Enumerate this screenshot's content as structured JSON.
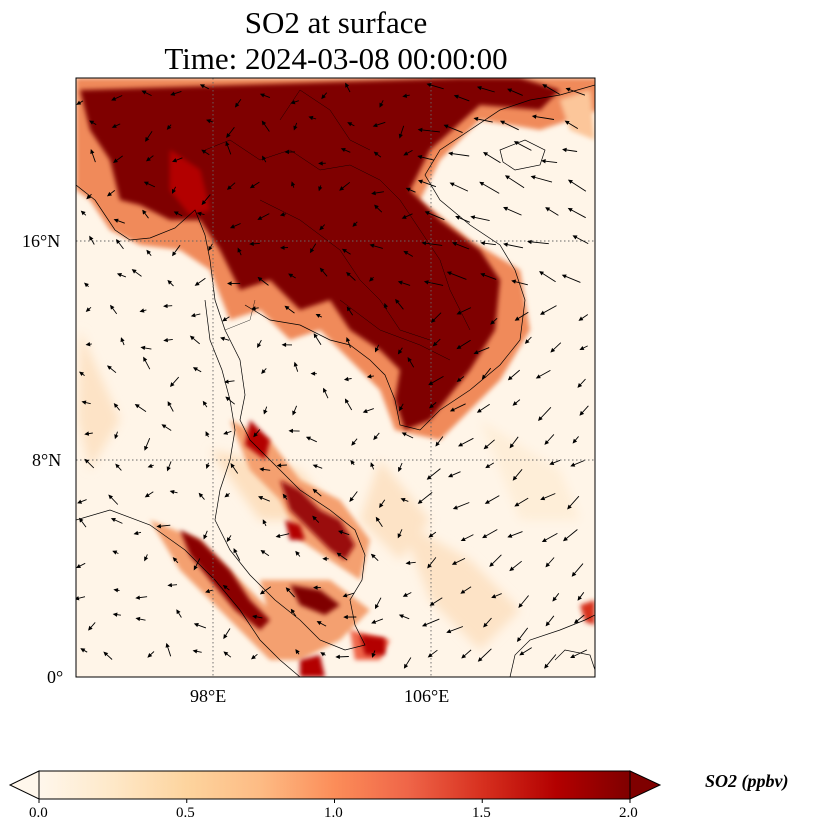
{
  "title": {
    "line1": "SO2 at surface",
    "line2": "Time: 2024-03-08 00:00:00"
  },
  "map": {
    "region": "Southeast Asia (Indochina, Malay Peninsula, South China Sea)",
    "lon_range_deg": [
      93,
      112
    ],
    "lat_range_deg": [
      0,
      21.8
    ],
    "gridlines": "dotted",
    "lat_ticks": [
      {
        "value": 16,
        "label": "16°N"
      },
      {
        "value": 8,
        "label": "8°N"
      },
      {
        "value": 0,
        "label": "0°"
      }
    ],
    "lon_ticks": [
      {
        "value": 98,
        "label": "98°E"
      },
      {
        "value": 106,
        "label": "106°E"
      }
    ],
    "wind_vectors": "shown as black arrows",
    "high_so2_areas": [
      "northern Myanmar / northern Thailand / Laos / northern Vietnam",
      "central Cambodia / southern Vietnam",
      "Malay Peninsula west coast",
      "Sumatra northeast coast"
    ]
  },
  "colorbar": {
    "label": "SO2 (ppbv)",
    "colormap": "OrRd",
    "colors": [
      "#fff7ec",
      "#fee8c8",
      "#fdd49e",
      "#fdbb84",
      "#fc8d59",
      "#ef6548",
      "#d7301f",
      "#b30000",
      "#7f0000"
    ],
    "min": 0.0,
    "max": 2.0,
    "extend": "both",
    "ticks": [
      {
        "value": 0.0,
        "label": "0.0"
      },
      {
        "value": 0.5,
        "label": "0.5"
      },
      {
        "value": 1.0,
        "label": "1.0"
      },
      {
        "value": 1.5,
        "label": "1.5"
      },
      {
        "value": 2.0,
        "label": "2.0"
      }
    ]
  }
}
